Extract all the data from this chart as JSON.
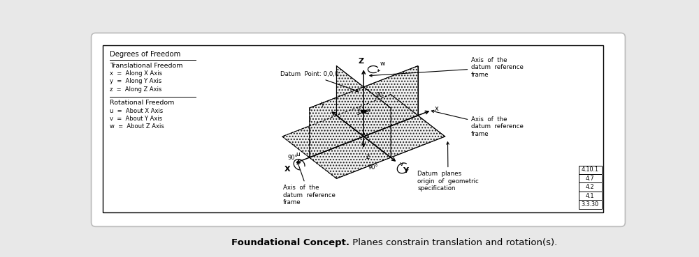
{
  "bg_color": "#e8e8e8",
  "card_bg": "#ffffff",
  "title_bold": "Foundational Concept.",
  "title_normal": " Planes constrain translation and rotation(s).",
  "legend_title": "Degrees of Freedom",
  "trans_freedom_title": "Translational Freedom",
  "trans_items": [
    "x  =  Along X Axis",
    "y  =  Along Y Axis",
    "z  =  Along Z Axis"
  ],
  "rot_freedom_title": "Rotational Freedom",
  "rot_items": [
    "u  =  About X Axis",
    "v  =  About Y Axis",
    "w  =  About Z Axis"
  ],
  "ref_table": [
    "4.10.1",
    "4.7",
    "4.2",
    "4.1",
    "3.3.30"
  ],
  "line_color": "#000000",
  "font_size_legend": 6.8,
  "font_size_labels": 6.5,
  "font_size_caption": 9.5
}
